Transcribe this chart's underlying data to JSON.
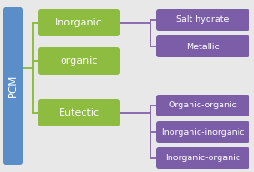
{
  "pcm_label": "PCM",
  "pcm_box_color": "#5B8DC8",
  "pcm_text_color": "#ffffff",
  "green_box_color": "#8EBC40",
  "green_text_color": "#ffffff",
  "purple_box_color": "#7B5EA7",
  "purple_text_color": "#ffffff",
  "left_line_color": "#8EBC40",
  "right_line_color": "#8B6BAE",
  "mid_boxes": [
    "Inorganic",
    "organic",
    "Eutectic"
  ],
  "right_boxes": [
    "Salt hydrate",
    "Metallic",
    "Organic-organic",
    "Inorganic-inorganic",
    "Inorganic-organic"
  ],
  "background_color": "#e8e8e8",
  "figsize": [
    2.8,
    1.89
  ],
  "dpi": 100
}
